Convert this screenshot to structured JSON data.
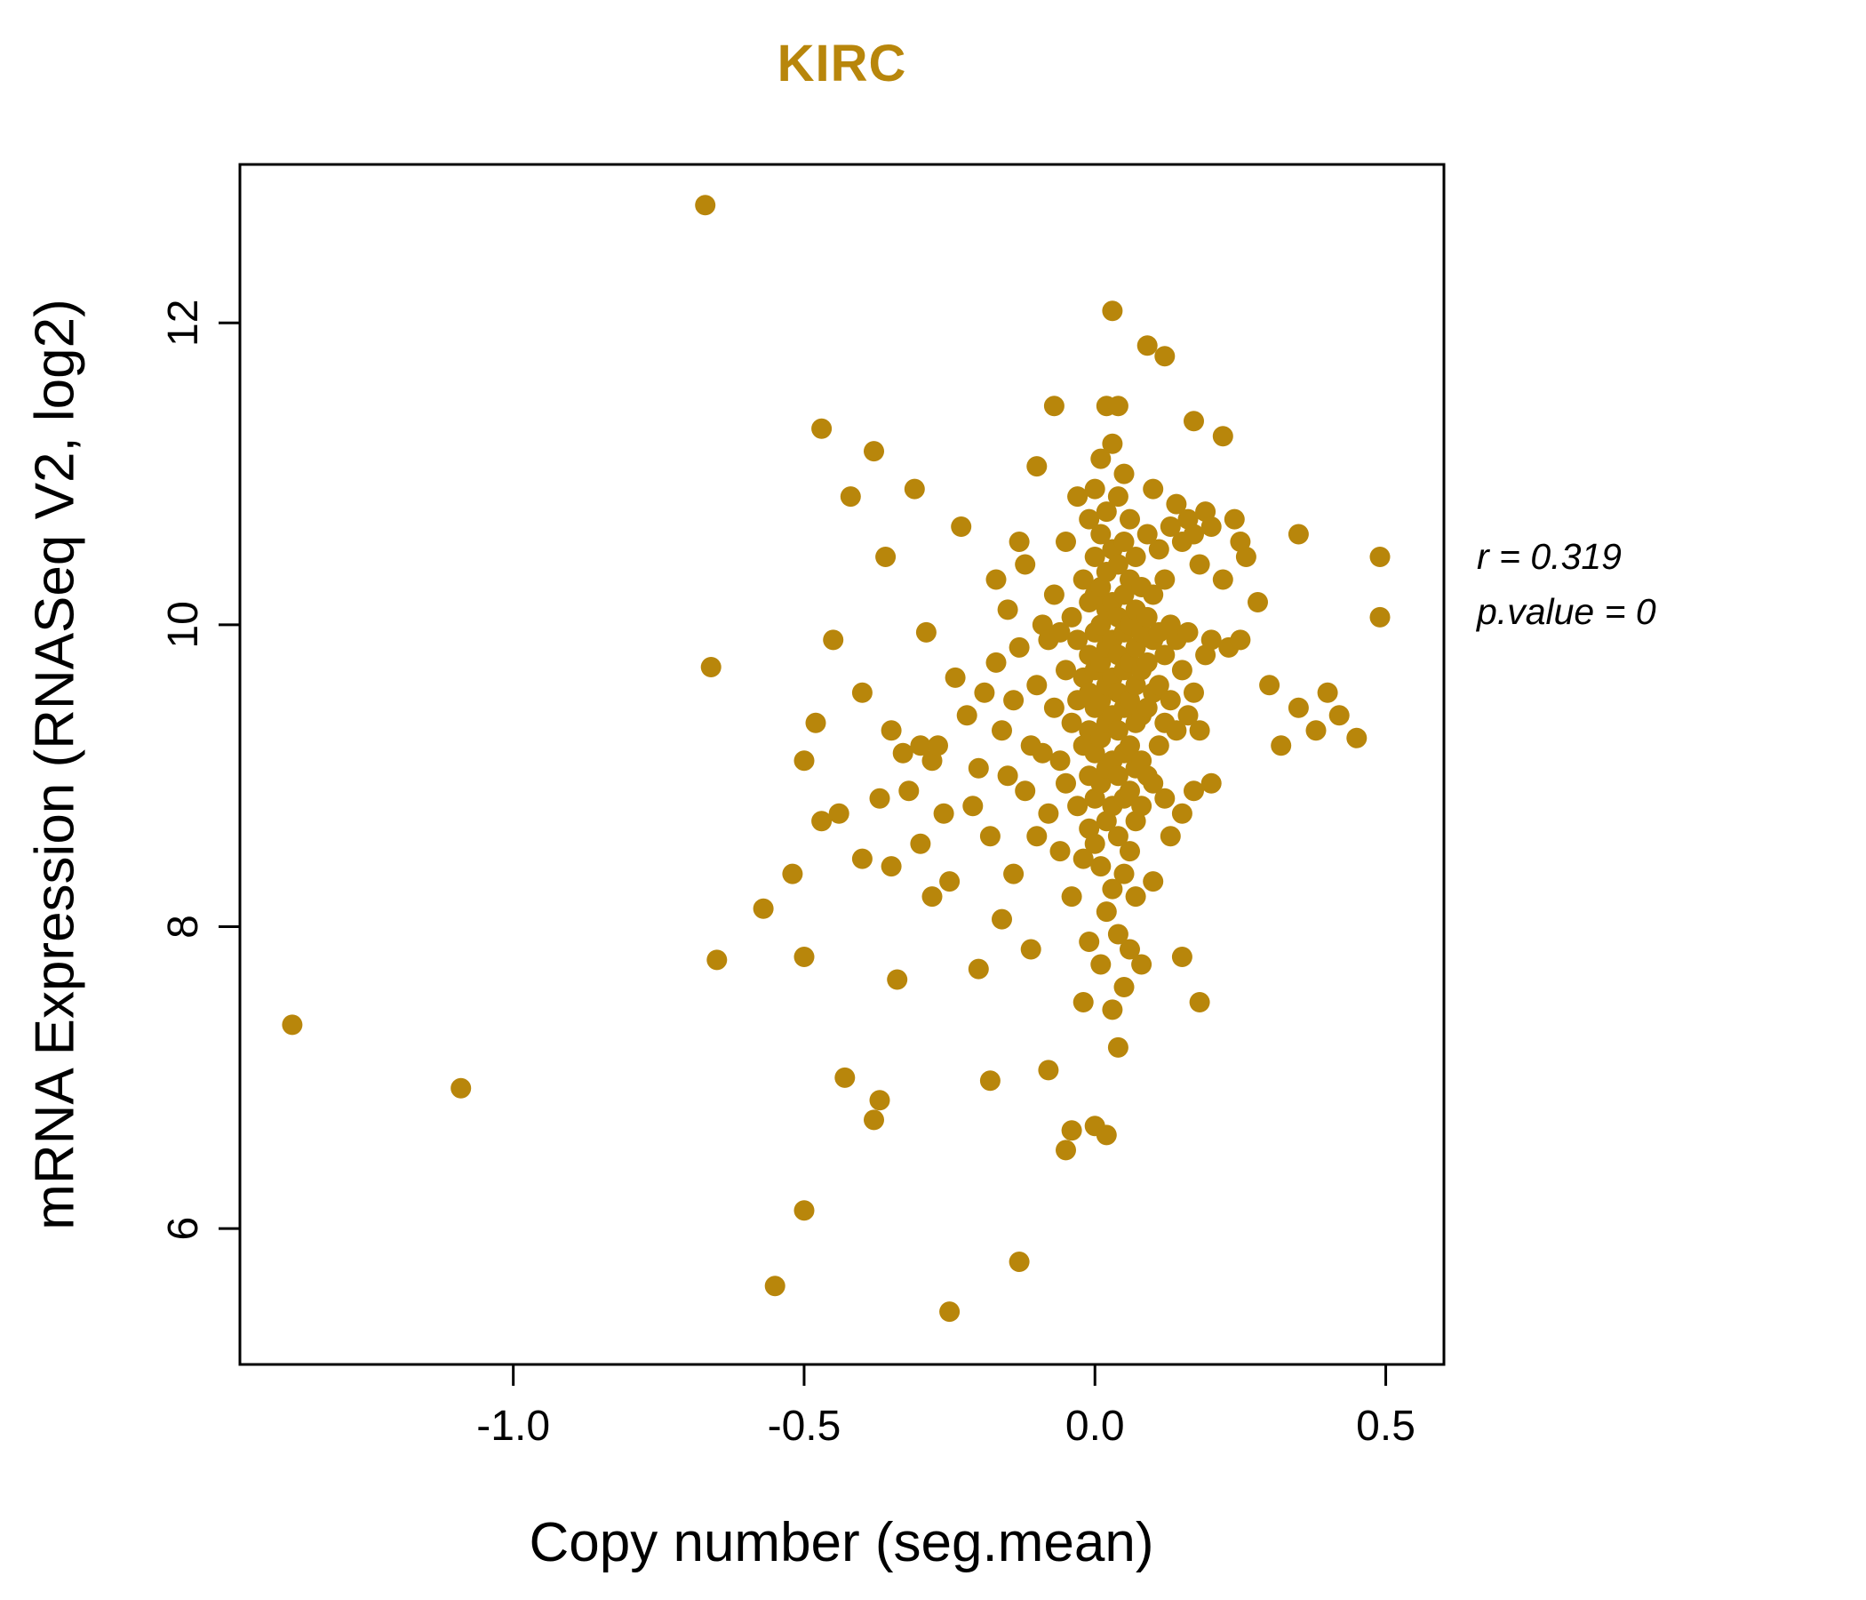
{
  "colors": {
    "accent": "#B8860B",
    "point": "#B8860B",
    "axis": "#000000",
    "background": "#FFFFFF"
  },
  "annotation": {
    "line1": "r = 0.319",
    "line2": "p.value = 0"
  },
  "chart_data": {
    "type": "scatter",
    "title": "KIRC",
    "xlabel": "Copy number (seg.mean)",
    "ylabel": "mRNA Expression (RNASeq V2, log2)",
    "xlim": [
      -1.47,
      0.6
    ],
    "ylim": [
      5.1,
      13.05
    ],
    "x_ticks": {
      "values": [
        -1.0,
        -0.5,
        0.0,
        0.5
      ],
      "labels": [
        "-1.0",
        "-0.5",
        "0.0",
        "0.5"
      ]
    },
    "y_ticks": {
      "values": [
        6,
        8,
        10,
        12
      ],
      "labels": [
        "6",
        "8",
        "10",
        "12"
      ]
    },
    "grid": false,
    "legend": "none",
    "marker": {
      "shape": "circle",
      "radius_px": 11.5
    },
    "points": [
      [
        -1.38,
        7.35
      ],
      [
        -1.09,
        6.93
      ],
      [
        -0.67,
        12.78
      ],
      [
        -0.66,
        9.72
      ],
      [
        -0.65,
        7.78
      ],
      [
        -0.57,
        8.12
      ],
      [
        -0.55,
        5.62
      ],
      [
        -0.52,
        8.35
      ],
      [
        -0.5,
        6.12
      ],
      [
        -0.5,
        7.8
      ],
      [
        -0.5,
        9.1
      ],
      [
        -0.48,
        9.35
      ],
      [
        -0.47,
        11.3
      ],
      [
        -0.47,
        8.7
      ],
      [
        -0.45,
        9.9
      ],
      [
        -0.44,
        8.75
      ],
      [
        -0.43,
        7.0
      ],
      [
        -0.42,
        10.85
      ],
      [
        -0.4,
        9.55
      ],
      [
        -0.4,
        8.45
      ],
      [
        -0.38,
        11.15
      ],
      [
        -0.38,
        6.72
      ],
      [
        -0.37,
        6.85
      ],
      [
        -0.37,
        8.85
      ],
      [
        -0.36,
        10.45
      ],
      [
        -0.35,
        9.3
      ],
      [
        -0.35,
        8.4
      ],
      [
        -0.34,
        7.65
      ],
      [
        -0.33,
        9.15
      ],
      [
        -0.32,
        8.9
      ],
      [
        -0.31,
        10.9
      ],
      [
        -0.3,
        9.2
      ],
      [
        -0.3,
        8.55
      ],
      [
        -0.29,
        9.95
      ],
      [
        -0.28,
        8.2
      ],
      [
        -0.28,
        9.1
      ],
      [
        -0.27,
        9.2
      ],
      [
        -0.26,
        8.75
      ],
      [
        -0.25,
        5.45
      ],
      [
        -0.25,
        8.3
      ],
      [
        -0.24,
        9.65
      ],
      [
        -0.23,
        10.65
      ],
      [
        -0.22,
        9.4
      ],
      [
        -0.21,
        8.8
      ],
      [
        -0.2,
        7.72
      ],
      [
        -0.2,
        9.05
      ],
      [
        -0.19,
        9.55
      ],
      [
        -0.18,
        8.6
      ],
      [
        -0.18,
        6.98
      ],
      [
        -0.17,
        10.3
      ],
      [
        -0.17,
        9.75
      ],
      [
        -0.16,
        9.3
      ],
      [
        -0.16,
        8.05
      ],
      [
        -0.15,
        10.1
      ],
      [
        -0.15,
        9.0
      ],
      [
        -0.14,
        9.5
      ],
      [
        -0.14,
        8.35
      ],
      [
        -0.13,
        5.78
      ],
      [
        -0.13,
        9.85
      ],
      [
        -0.13,
        10.55
      ],
      [
        -0.12,
        10.4
      ],
      [
        -0.12,
        8.9
      ],
      [
        -0.11,
        9.2
      ],
      [
        -0.11,
        7.85
      ],
      [
        -0.1,
        11.05
      ],
      [
        -0.1,
        9.6
      ],
      [
        -0.1,
        8.6
      ],
      [
        -0.09,
        10.0
      ],
      [
        -0.09,
        9.15
      ],
      [
        -0.08,
        9.9
      ],
      [
        -0.08,
        8.75
      ],
      [
        -0.08,
        7.05
      ],
      [
        -0.07,
        11.45
      ],
      [
        -0.07,
        10.2
      ],
      [
        -0.07,
        9.45
      ],
      [
        -0.06,
        9.95
      ],
      [
        -0.06,
        9.1
      ],
      [
        -0.06,
        8.5
      ],
      [
        -0.05,
        10.55
      ],
      [
        -0.05,
        9.7
      ],
      [
        -0.05,
        8.95
      ],
      [
        -0.05,
        6.52
      ],
      [
        -0.04,
        10.05
      ],
      [
        -0.04,
        9.35
      ],
      [
        -0.04,
        8.2
      ],
      [
        -0.04,
        6.65
      ],
      [
        -0.03,
        10.85
      ],
      [
        -0.03,
        9.9
      ],
      [
        -0.03,
        9.5
      ],
      [
        -0.03,
        8.8
      ],
      [
        -0.02,
        10.3
      ],
      [
        -0.02,
        9.65
      ],
      [
        -0.02,
        9.2
      ],
      [
        -0.02,
        8.45
      ],
      [
        -0.02,
        7.5
      ],
      [
        -0.01,
        10.7
      ],
      [
        -0.01,
        10.15
      ],
      [
        -0.01,
        9.8
      ],
      [
        -0.01,
        9.55
      ],
      [
        -0.01,
        9.3
      ],
      [
        -0.01,
        9.0
      ],
      [
        -0.01,
        8.65
      ],
      [
        -0.01,
        7.9
      ],
      [
        0,
        10.9
      ],
      [
        0,
        10.45
      ],
      [
        0,
        10.2
      ],
      [
        0,
        9.95
      ],
      [
        0,
        9.7
      ],
      [
        0,
        9.45
      ],
      [
        0,
        9.15
      ],
      [
        0,
        8.85
      ],
      [
        0,
        8.55
      ],
      [
        0,
        6.68
      ],
      [
        0.01,
        11.1
      ],
      [
        0.01,
        10.6
      ],
      [
        0.01,
        10.25
      ],
      [
        0.01,
        10.0
      ],
      [
        0.01,
        9.75
      ],
      [
        0.01,
        9.5
      ],
      [
        0.01,
        9.25
      ],
      [
        0.01,
        8.95
      ],
      [
        0.01,
        8.4
      ],
      [
        0.01,
        7.75
      ],
      [
        0.02,
        11.45
      ],
      [
        0.02,
        10.75
      ],
      [
        0.02,
        10.35
      ],
      [
        0.02,
        10.1
      ],
      [
        0.02,
        9.85
      ],
      [
        0.02,
        9.6
      ],
      [
        0.02,
        9.35
      ],
      [
        0.02,
        9.05
      ],
      [
        0.02,
        8.7
      ],
      [
        0.02,
        8.1
      ],
      [
        0.02,
        6.62
      ],
      [
        0.03,
        12.08
      ],
      [
        0.03,
        11.2
      ],
      [
        0.03,
        10.5
      ],
      [
        0.03,
        10.15
      ],
      [
        0.03,
        9.9
      ],
      [
        0.03,
        9.65
      ],
      [
        0.03,
        9.4
      ],
      [
        0.03,
        9.1
      ],
      [
        0.03,
        8.8
      ],
      [
        0.03,
        8.25
      ],
      [
        0.03,
        7.45
      ],
      [
        0.04,
        11.45
      ],
      [
        0.04,
        10.85
      ],
      [
        0.04,
        10.4
      ],
      [
        0.04,
        10.05
      ],
      [
        0.04,
        9.8
      ],
      [
        0.04,
        9.55
      ],
      [
        0.04,
        9.3
      ],
      [
        0.04,
        9.0
      ],
      [
        0.04,
        8.6
      ],
      [
        0.04,
        7.95
      ],
      [
        0.04,
        7.2
      ],
      [
        0.05,
        11.0
      ],
      [
        0.05,
        10.55
      ],
      [
        0.05,
        10.2
      ],
      [
        0.05,
        9.95
      ],
      [
        0.05,
        9.7
      ],
      [
        0.05,
        9.45
      ],
      [
        0.05,
        9.15
      ],
      [
        0.05,
        8.85
      ],
      [
        0.05,
        8.35
      ],
      [
        0.05,
        7.6
      ],
      [
        0.06,
        10.7
      ],
      [
        0.06,
        10.3
      ],
      [
        0.06,
        10.0
      ],
      [
        0.06,
        9.75
      ],
      [
        0.06,
        9.5
      ],
      [
        0.06,
        9.2
      ],
      [
        0.06,
        8.9
      ],
      [
        0.06,
        8.5
      ],
      [
        0.06,
        7.85
      ],
      [
        0.07,
        10.45
      ],
      [
        0.07,
        10.1
      ],
      [
        0.07,
        9.85
      ],
      [
        0.07,
        9.6
      ],
      [
        0.07,
        9.35
      ],
      [
        0.07,
        9.05
      ],
      [
        0.07,
        8.7
      ],
      [
        0.07,
        8.2
      ],
      [
        0.08,
        10.25
      ],
      [
        0.08,
        9.95
      ],
      [
        0.08,
        9.7
      ],
      [
        0.08,
        9.4
      ],
      [
        0.08,
        9.1
      ],
      [
        0.08,
        8.8
      ],
      [
        0.08,
        7.75
      ],
      [
        0.09,
        11.85
      ],
      [
        0.09,
        10.6
      ],
      [
        0.09,
        10.05
      ],
      [
        0.09,
        9.75
      ],
      [
        0.09,
        9.45
      ],
      [
        0.09,
        9.0
      ],
      [
        0.1,
        10.9
      ],
      [
        0.1,
        10.2
      ],
      [
        0.1,
        9.9
      ],
      [
        0.1,
        9.55
      ],
      [
        0.1,
        8.95
      ],
      [
        0.1,
        8.3
      ],
      [
        0.11,
        10.5
      ],
      [
        0.11,
        9.95
      ],
      [
        0.11,
        9.6
      ],
      [
        0.11,
        9.2
      ],
      [
        0.12,
        11.78
      ],
      [
        0.12,
        10.3
      ],
      [
        0.12,
        9.8
      ],
      [
        0.12,
        9.35
      ],
      [
        0.12,
        8.85
      ],
      [
        0.13,
        10.65
      ],
      [
        0.13,
        10.0
      ],
      [
        0.13,
        9.5
      ],
      [
        0.13,
        8.6
      ],
      [
        0.14,
        10.8
      ],
      [
        0.14,
        9.9
      ],
      [
        0.14,
        9.3
      ],
      [
        0.15,
        10.55
      ],
      [
        0.15,
        9.7
      ],
      [
        0.15,
        8.75
      ],
      [
        0.15,
        7.8
      ],
      [
        0.16,
        10.7
      ],
      [
        0.16,
        9.95
      ],
      [
        0.16,
        9.4
      ],
      [
        0.17,
        11.35
      ],
      [
        0.17,
        10.6
      ],
      [
        0.17,
        9.55
      ],
      [
        0.17,
        8.9
      ],
      [
        0.18,
        10.4
      ],
      [
        0.18,
        9.3
      ],
      [
        0.18,
        7.5
      ],
      [
        0.19,
        10.75
      ],
      [
        0.19,
        9.8
      ],
      [
        0.2,
        10.65
      ],
      [
        0.2,
        9.9
      ],
      [
        0.2,
        8.95
      ],
      [
        0.22,
        11.25
      ],
      [
        0.22,
        10.3
      ],
      [
        0.23,
        9.85
      ],
      [
        0.24,
        10.7
      ],
      [
        0.25,
        10.55
      ],
      [
        0.25,
        9.9
      ],
      [
        0.26,
        10.45
      ],
      [
        0.28,
        10.15
      ],
      [
        0.3,
        9.6
      ],
      [
        0.32,
        9.2
      ],
      [
        0.35,
        10.6
      ],
      [
        0.35,
        9.45
      ],
      [
        0.38,
        9.3
      ],
      [
        0.4,
        9.55
      ],
      [
        0.42,
        9.4
      ],
      [
        0.45,
        9.25
      ],
      [
        0.49,
        10.45
      ],
      [
        0.49,
        10.05
      ]
    ]
  }
}
